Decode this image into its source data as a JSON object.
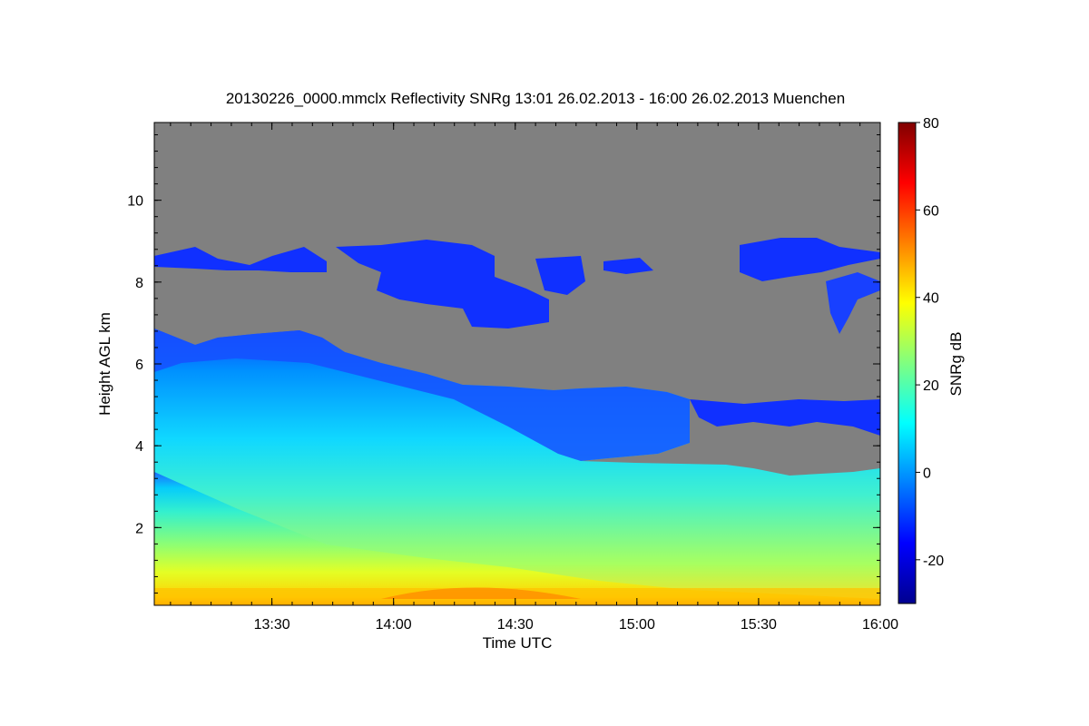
{
  "chart_data": {
    "type": "heatmap",
    "title": "20130226_0000.mmclx Reflectivity SNRg   13:01 26.02.2013 - 16:00 26.02.2013 Muenchen",
    "xlabel": "Time UTC",
    "ylabel": "Height AGL km",
    "colorbar_label": "SNRg dB",
    "x_ticks": [
      "13:30",
      "14:00",
      "14:30",
      "15:00",
      "15:30",
      "16:00"
    ],
    "y_ticks": [
      "2",
      "4",
      "6",
      "8",
      "10"
    ],
    "colorbar_ticks": [
      "80",
      "60",
      "40",
      "20",
      "0",
      "-20"
    ],
    "x_range": [
      "13:01",
      "16:00"
    ],
    "y_range_km": [
      0.1,
      11.9
    ],
    "colorbar_range_db": [
      -30,
      80
    ],
    "background_color": "#808080",
    "colormap": [
      "#00008f",
      "#0000ff",
      "#0080ff",
      "#00ffff",
      "#80ff80",
      "#ffff00",
      "#ff8000",
      "#ff0000",
      "#800000"
    ]
  }
}
